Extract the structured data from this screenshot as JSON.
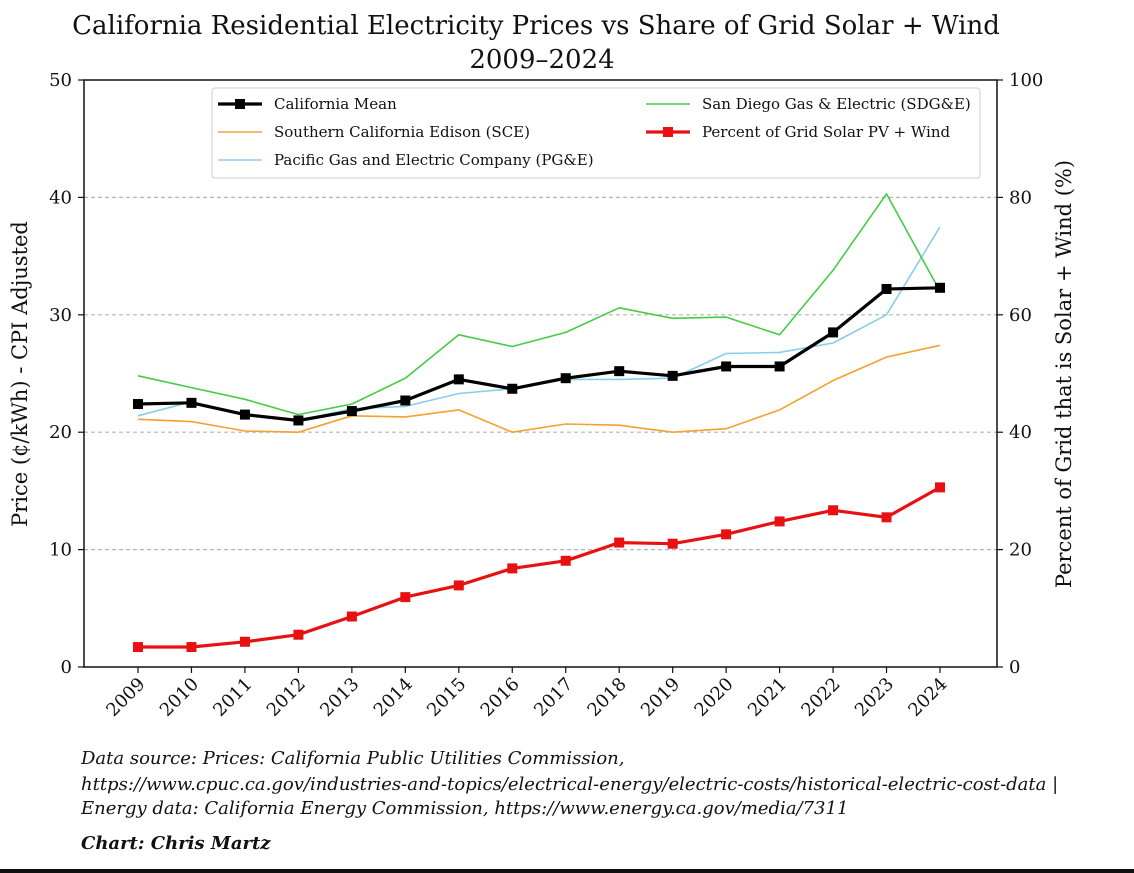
{
  "chart_data": {
    "type": "line",
    "title": "California Residential Electricity Prices vs Share of Grid Solar + Wind",
    "subtitle": "2009–2024",
    "xlabel": "",
    "ylabel": "Price (¢/kWh) - CPI Adjusted",
    "y2label": "Percent of Grid that is Solar + Wind (%)",
    "ylim": [
      0,
      50
    ],
    "y2lim": [
      0,
      100
    ],
    "yticks": [
      0,
      10,
      20,
      30,
      40,
      50
    ],
    "y2ticks": [
      0,
      20,
      40,
      60,
      80,
      100
    ],
    "grid": "horizontal dashed",
    "legend_position": "top",
    "categories": [
      "2009",
      "2010",
      "2011",
      "2012",
      "2013",
      "2014",
      "2015",
      "2016",
      "2017",
      "2018",
      "2019",
      "2020",
      "2021",
      "2022",
      "2023",
      "2024"
    ],
    "series": [
      {
        "name": "California Mean",
        "axis": "left",
        "color": "#000000",
        "marker": "square",
        "values": [
          22.4,
          22.5,
          21.5,
          21.0,
          21.8,
          22.7,
          24.5,
          23.7,
          24.6,
          25.2,
          24.8,
          25.6,
          25.6,
          28.5,
          32.2,
          32.3
        ]
      },
      {
        "name": "Southern California Edison (SCE)",
        "axis": "left",
        "color": "#f5a030",
        "marker": "none",
        "values": [
          21.1,
          20.9,
          20.1,
          20.0,
          21.4,
          21.3,
          21.9,
          20.0,
          20.7,
          20.6,
          20.0,
          20.3,
          21.9,
          24.4,
          26.4,
          27.4
        ]
      },
      {
        "name": "Pacific Gas and Electric Company (PG&E)",
        "axis": "left",
        "color": "#87ceeb",
        "marker": "none",
        "values": [
          21.4,
          22.6,
          21.5,
          21.0,
          22.0,
          22.2,
          23.3,
          23.7,
          24.5,
          24.5,
          24.6,
          26.7,
          26.8,
          27.6,
          30.0,
          37.5
        ]
      },
      {
        "name": "San Diego Gas & Electric (SDG&E)",
        "axis": "left",
        "color": "#44cc44",
        "marker": "none",
        "values": [
          24.8,
          23.8,
          22.8,
          21.5,
          22.4,
          24.6,
          28.3,
          27.3,
          28.5,
          30.6,
          29.7,
          29.8,
          28.3,
          33.8,
          40.3,
          32.0
        ]
      },
      {
        "name": "Percent of Grid Solar PV + Wind",
        "axis": "right",
        "color": "#e81010",
        "marker": "square",
        "values": [
          3.4,
          3.4,
          4.3,
          5.5,
          8.6,
          11.9,
          13.9,
          16.8,
          18.1,
          21.2,
          21.0,
          22.6,
          24.8,
          26.7,
          25.5,
          30.6
        ]
      }
    ]
  },
  "legend_order": [
    0,
    3,
    1,
    4,
    2
  ],
  "footer": {
    "source_line1": "Data source: Prices: California Public Utilities Commission,",
    "source_line2": "https://www.cpuc.ca.gov/industries-and-topics/electrical-energy/electric-costs/historical-electric-cost-data |",
    "source_line3": "Energy data: California Energy Commission, https://www.energy.ca.gov/media/7311",
    "credit": "Chart: Chris Martz"
  }
}
